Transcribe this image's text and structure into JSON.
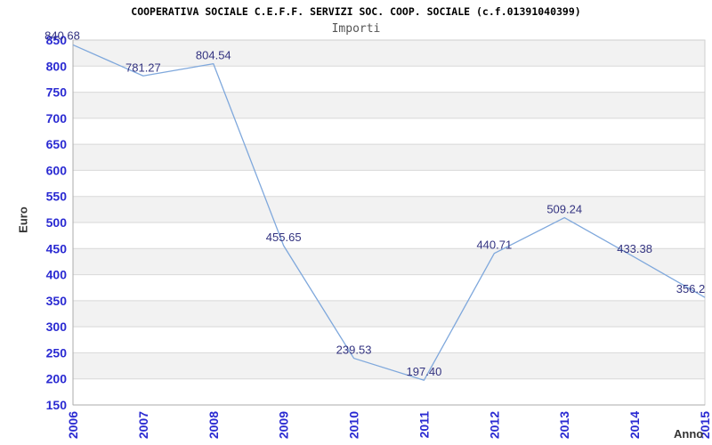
{
  "chart_data": {
    "type": "line",
    "title": "COOPERATIVA SOCIALE C.E.F.F. SERVIZI SOC. COOP. SOCIALE (c.f.01391040399)",
    "subtitle": "Importi",
    "xlabel": "Anno",
    "ylabel": "Euro",
    "categories": [
      "2006",
      "2007",
      "2008",
      "2009",
      "2010",
      "2011",
      "2012",
      "2013",
      "2014",
      "2015"
    ],
    "values": [
      840.68,
      781.27,
      804.54,
      455.65,
      239.53,
      197.4,
      440.71,
      509.24,
      433.38,
      356.2
    ],
    "point_labels": [
      "840.68",
      "781.27",
      "804.54",
      "455.65",
      "239.53",
      "197.40",
      "440.71",
      "509.24",
      "433.38",
      "356.2"
    ],
    "ylim": [
      150,
      850
    ],
    "ytick_step": 50,
    "ytick_labels": [
      "150",
      "200",
      "250",
      "300",
      "350",
      "400",
      "450",
      "500",
      "550",
      "600",
      "650",
      "700",
      "750",
      "800",
      "850"
    ],
    "grid": true,
    "legend": false,
    "band_fill_alternating": true,
    "colors": {
      "line": "#7fa8dc",
      "tick": "#2a2ad2",
      "point_label": "#333380",
      "band": "#f2f2f2",
      "grid": "#d8d8d8",
      "border": "#cfcfcf",
      "axis": "#ababab",
      "title": "#000000",
      "subtitle": "#555555",
      "axis_title": "#333333",
      "background": "#ffffff"
    }
  }
}
